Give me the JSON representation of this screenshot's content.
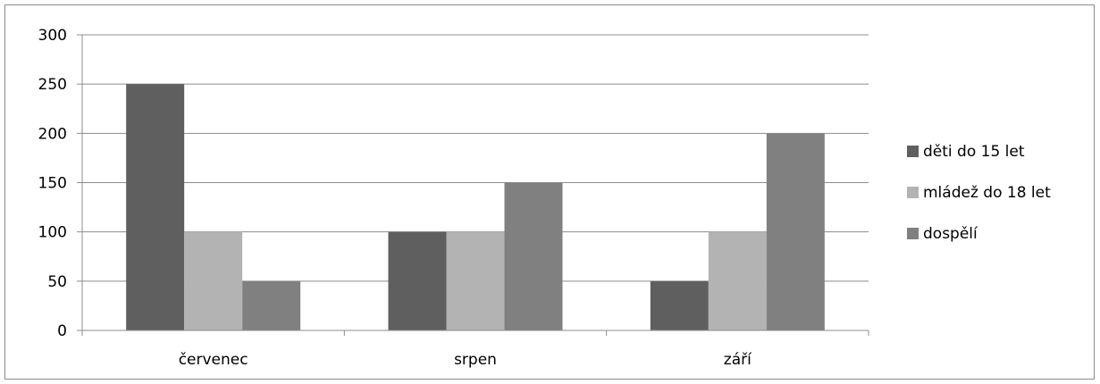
{
  "chart_data": {
    "type": "bar",
    "categories": [
      "červenec",
      "srpen",
      "září"
    ],
    "series": [
      {
        "name": "děti do 15 let",
        "values": [
          250,
          100,
          50
        ],
        "color": "#5f5f5f"
      },
      {
        "name": "mládež do 18 let",
        "values": [
          100,
          100,
          100
        ],
        "color": "#b3b3b3"
      },
      {
        "name": "dospělí",
        "values": [
          50,
          150,
          200
        ],
        "color": "#808080"
      }
    ],
    "title": "",
    "xlabel": "",
    "ylabel": "",
    "ylim": [
      0,
      300
    ],
    "yticks": [
      0,
      50,
      100,
      150,
      200,
      250,
      300
    ],
    "grid": true,
    "legend_position": "right",
    "colors": {
      "gridline": "#8c8c8c",
      "axis": "#8c8c8c",
      "frame": "#8c8c8c"
    }
  }
}
